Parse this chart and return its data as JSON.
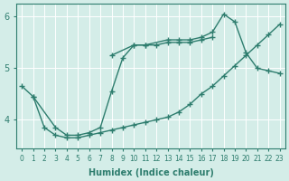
{
  "line1_bottom": {
    "x": [
      1,
      2,
      3,
      4,
      5,
      6,
      7,
      8,
      9,
      10,
      11,
      12,
      13,
      14,
      15,
      16,
      17,
      18,
      19,
      20,
      21,
      22,
      23
    ],
    "y": [
      4.45,
      3.85,
      3.7,
      3.65,
      3.65,
      3.7,
      3.75,
      3.8,
      3.85,
      3.9,
      3.95,
      4.0,
      4.05,
      4.15,
      4.3,
      4.5,
      4.65,
      4.85,
      5.05,
      5.25,
      5.45,
      5.65,
      5.85
    ]
  },
  "line2_middle": {
    "x": [
      0,
      1,
      3,
      4,
      5,
      6,
      7,
      8,
      9,
      10,
      11,
      12,
      13,
      14,
      15,
      16,
      17
    ],
    "y": [
      4.65,
      4.45,
      3.85,
      3.7,
      3.7,
      3.75,
      3.85,
      4.55,
      5.2,
      5.45,
      5.45,
      5.45,
      5.5,
      5.5,
      5.5,
      5.55,
      5.6
    ]
  },
  "line3_top": {
    "x": [
      8,
      10,
      11,
      13,
      14,
      15,
      16,
      17,
      18,
      19,
      20,
      21,
      22,
      23
    ],
    "y": [
      5.25,
      5.45,
      5.45,
      5.55,
      5.55,
      5.55,
      5.6,
      5.7,
      6.05,
      5.9,
      5.3,
      5.0,
      4.95,
      4.9
    ]
  },
  "color": "#2e7d6e",
  "bg_color": "#d4ede8",
  "marker": "+",
  "marker_size": 4,
  "marker_lw": 1.0,
  "line_width": 1.0,
  "xlabel": "Humidex (Indice chaleur)",
  "xlim": [
    -0.5,
    23.5
  ],
  "ylim": [
    3.45,
    6.25
  ],
  "yticks": [
    4,
    5,
    6
  ],
  "xticks": [
    0,
    1,
    2,
    3,
    4,
    5,
    6,
    7,
    8,
    9,
    10,
    11,
    12,
    13,
    14,
    15,
    16,
    17,
    18,
    19,
    20,
    21,
    22,
    23
  ],
  "xlabel_fontsize": 7,
  "tick_fontsize": 5.5,
  "ytick_fontsize": 7
}
